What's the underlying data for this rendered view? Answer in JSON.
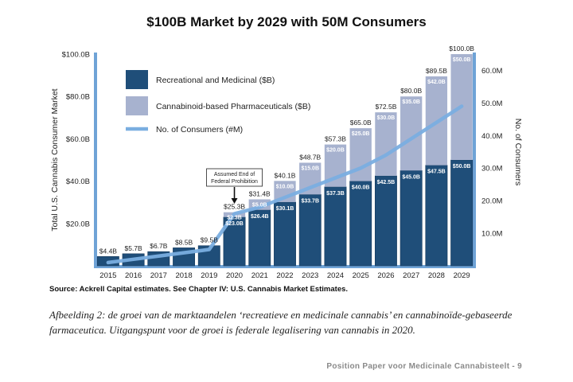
{
  "chart_data": {
    "type": "bar",
    "title": "$100B Market by 2029 with 50M Consumers",
    "ylabel_left": "Total U.S. Cannabis Consumer Market",
    "ylabel_right": "No. of Consumers",
    "categories": [
      "2015",
      "2016",
      "2017",
      "2018",
      "2019",
      "2020",
      "2021",
      "2022",
      "2023",
      "2024",
      "2025",
      "2026",
      "2027",
      "2028",
      "2029"
    ],
    "series": [
      {
        "name": "Recreational and Medicinal ($B)",
        "type": "bar",
        "stacked": true,
        "color": "#1f4e79",
        "values": [
          4.4,
          5.7,
          6.7,
          8.5,
          9.5,
          23.0,
          26.4,
          30.1,
          33.7,
          37.3,
          40.0,
          42.5,
          45.0,
          47.5,
          50.0
        ],
        "labels": [
          "",
          "",
          "",
          "",
          "",
          "$23.0B",
          "$26.4B",
          "$30.1B",
          "$33.7B",
          "$37.3B",
          "$40.0B",
          "$42.5B",
          "$45.0B",
          "$47.5B",
          "$50.0B"
        ]
      },
      {
        "name": "Cannabinoid-based Pharmaceuticals ($B)",
        "type": "bar",
        "stacked": true,
        "color": "#a7b2cf",
        "values": [
          0,
          0,
          0,
          0,
          0,
          2.3,
          5.0,
          10.0,
          15.0,
          20.0,
          25.0,
          30.0,
          35.0,
          42.0,
          50.0
        ],
        "labels": [
          "",
          "",
          "",
          "",
          "",
          "$2.3B",
          "$5.0B",
          "$10.0B",
          "$15.0B",
          "$20.0B",
          "$25.0B",
          "$30.0B",
          "$35.0B",
          "$42.0B",
          "$50.0B"
        ]
      },
      {
        "name": "No. of Consumers (#M)",
        "type": "line",
        "axis": "right",
        "color": "#7aaee0",
        "values": [
          1,
          2,
          3,
          4,
          5,
          16,
          18,
          21,
          24,
          27,
          30,
          34,
          39,
          44,
          49
        ]
      }
    ],
    "totals": [
      "$4.4B",
      "$5.7B",
      "$6.7B",
      "$8.5B",
      "$9.5B",
      "$25.3B",
      "$31.4B",
      "$40.1B",
      "$48.7B",
      "$57.3B",
      "$65.0B",
      "$72.5B",
      "$80.0B",
      "$89.5B",
      "$100.0B"
    ],
    "totals_values": [
      4.4,
      5.7,
      6.7,
      8.5,
      9.5,
      25.3,
      31.4,
      40.1,
      48.7,
      57.3,
      65.0,
      72.5,
      80.0,
      89.5,
      100.0
    ],
    "ylim_left": [
      0,
      100
    ],
    "yticks_left": [
      "$20.0B",
      "$40.0B",
      "$60.0B",
      "$80.0B",
      "$100.0B"
    ],
    "yticks_left_values": [
      20,
      40,
      60,
      80,
      100
    ],
    "ylim_right": [
      0,
      65
    ],
    "yticks_right": [
      "10.0M",
      "20.0M",
      "30.0M",
      "40.0M",
      "50.0M",
      "60.0M"
    ],
    "yticks_right_values": [
      10,
      20,
      30,
      40,
      50,
      60
    ],
    "legend_position": "top-left",
    "annotation": {
      "text_line1": "Assumed End of",
      "text_line2": "Federal Prohibition",
      "category": "2020"
    },
    "grid": false
  },
  "source": "Source: Ackrell Capital estimates. See Chapter IV: U.S. Cannabis Market Estimates.",
  "caption": "Afbeelding 2: de groei van de marktaandelen ‘recreatieve en medicinale cannabis’ en cannabinoïde-gebaseerde farmaceutica. Uitgangspunt voor de groei is federale legalisering van cannabis in 2020.",
  "footer": "Position Paper voor Medicinale Cannabisteelt - 9",
  "colors": {
    "dark_bar": "#1f4e79",
    "light_bar": "#a7b2cf",
    "line": "#7aaee0",
    "frame": "#6fa3d6"
  }
}
